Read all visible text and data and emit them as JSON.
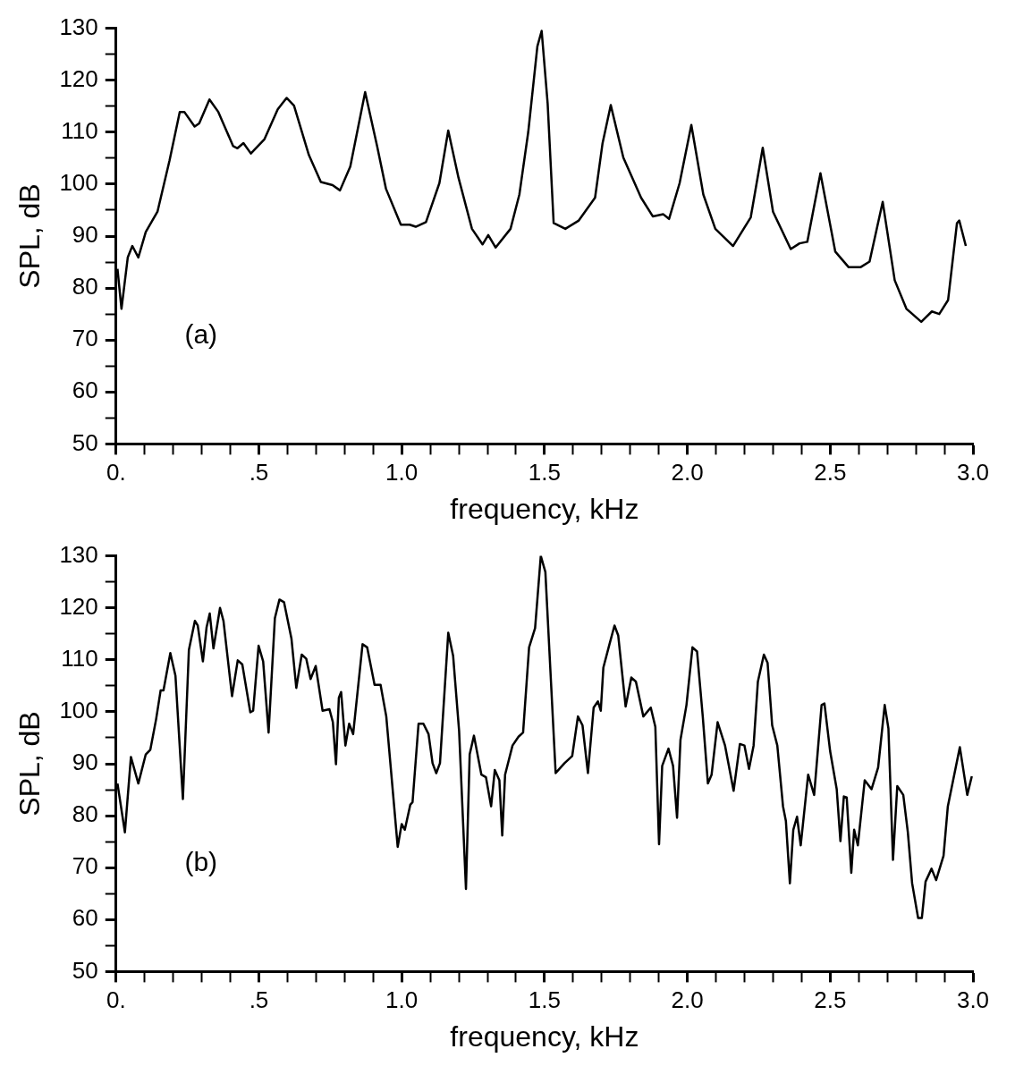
{
  "chart_data": [
    {
      "type": "line",
      "xlabel": "frequency, kHz",
      "ylabel": "SPL, dB",
      "annotations": [
        "(a)"
      ],
      "xlim": [
        0,
        3
      ],
      "ylim": [
        50,
        130
      ],
      "xticks": [
        {
          "value": 0,
          "label": "0."
        },
        {
          "value": 0.1,
          "label": null
        },
        {
          "value": 0.2,
          "label": null
        },
        {
          "value": 0.3,
          "label": null
        },
        {
          "value": 0.4,
          "label": null
        },
        {
          "value": 0.5,
          "label": ".5"
        },
        {
          "value": 0.6,
          "label": null
        },
        {
          "value": 0.7,
          "label": null
        },
        {
          "value": 0.8,
          "label": null
        },
        {
          "value": 0.9,
          "label": null
        },
        {
          "value": 1,
          "label": "1.0"
        },
        {
          "value": 1.1,
          "label": null
        },
        {
          "value": 1.2,
          "label": null
        },
        {
          "value": 1.3,
          "label": null
        },
        {
          "value": 1.4,
          "label": null
        },
        {
          "value": 1.5,
          "label": "1.5"
        },
        {
          "value": 1.6,
          "label": null
        },
        {
          "value": 1.7,
          "label": null
        },
        {
          "value": 1.8,
          "label": null
        },
        {
          "value": 1.9,
          "label": null
        },
        {
          "value": 2,
          "label": "2.0"
        },
        {
          "value": 2.1,
          "label": null
        },
        {
          "value": 2.2,
          "label": null
        },
        {
          "value": 2.3,
          "label": null
        },
        {
          "value": 2.4,
          "label": null
        },
        {
          "value": 2.5,
          "label": "2.5"
        },
        {
          "value": 2.6,
          "label": null
        },
        {
          "value": 2.7,
          "label": null
        },
        {
          "value": 2.8,
          "label": null
        },
        {
          "value": 2.9,
          "label": null
        },
        {
          "value": 3,
          "label": "3.0"
        }
      ],
      "yticks": [
        50,
        {
          "value": 55,
          "label": null
        },
        60,
        {
          "value": 65,
          "label": null
        },
        70,
        {
          "value": 75,
          "label": null
        },
        80,
        {
          "value": 85,
          "label": null
        },
        90,
        {
          "value": 95,
          "label": null
        },
        100,
        {
          "value": 105,
          "label": null
        },
        110,
        {
          "value": 115,
          "label": null
        },
        120,
        {
          "value": 125,
          "label": null
        },
        130
      ],
      "grid": false,
      "legend": false,
      "marker": "none",
      "line_style": "solid",
      "series": [
        {
          "color": "#000000",
          "x": [
            0.005,
            0.019,
            0.041,
            0.057,
            0.078,
            0.104,
            0.145,
            0.187,
            0.223,
            0.239,
            0.275,
            0.291,
            0.327,
            0.358,
            0.41,
            0.425,
            0.446,
            0.472,
            0.519,
            0.566,
            0.597,
            0.623,
            0.675,
            0.717,
            0.758,
            0.784,
            0.82,
            0.872,
            0.914,
            0.945,
            0.997,
            1.028,
            1.049,
            1.085,
            1.132,
            1.163,
            1.199,
            1.246,
            1.283,
            1.303,
            1.329,
            1.381,
            1.412,
            1.443,
            1.475,
            1.49,
            1.511,
            1.532,
            1.573,
            1.62,
            1.677,
            1.703,
            1.732,
            1.776,
            1.838,
            1.879,
            1.916,
            1.936,
            1.973,
            2.014,
            2.056,
            2.098,
            2.16,
            2.222,
            2.264,
            2.3,
            2.362,
            2.393,
            2.42,
            2.466,
            2.518,
            2.565,
            2.606,
            2.638,
            2.684,
            2.726,
            2.767,
            2.819,
            2.856,
            2.882,
            2.913,
            2.944,
            2.952,
            2.975
          ],
          "values": [
            83.7,
            76,
            85.9,
            88.1,
            85.9,
            90.8,
            94.7,
            104.5,
            113.9,
            113.9,
            111.1,
            111.7,
            116.3,
            113.9,
            107.3,
            106.9,
            107.9,
            105.9,
            108.6,
            114.4,
            116.6,
            115.1,
            105.6,
            100.4,
            99.8,
            98.8,
            103.4,
            117.7,
            107.3,
            99.1,
            92.2,
            92.2,
            91.8,
            92.7,
            100.2,
            110.3,
            101.2,
            91.4,
            88.4,
            90.2,
            87.8,
            91.4,
            98,
            110,
            126.5,
            129.5,
            115.5,
            92.5,
            91.4,
            93,
            97.4,
            107.8,
            115.2,
            105.1,
            97.4,
            93.8,
            94.2,
            93.3,
            100.2,
            111.4,
            98,
            91.4,
            88.1,
            93.6,
            107,
            94.7,
            87.5,
            88.6,
            88.9,
            102.1,
            87,
            84,
            84,
            85.1,
            96.6,
            81.5,
            76,
            73.5,
            75.5,
            75,
            77.7,
            92.5,
            93,
            88.1
          ]
        }
      ]
    },
    {
      "type": "line",
      "xlabel": "frequency, kHz",
      "ylabel": "SPL, dB",
      "annotations": [
        "(b)"
      ],
      "xlim": [
        0,
        3
      ],
      "ylim": [
        50,
        130
      ],
      "xticks": [
        {
          "value": 0,
          "label": "0."
        },
        {
          "value": 0.1,
          "label": null
        },
        {
          "value": 0.2,
          "label": null
        },
        {
          "value": 0.3,
          "label": null
        },
        {
          "value": 0.4,
          "label": null
        },
        {
          "value": 0.5,
          "label": ".5"
        },
        {
          "value": 0.6,
          "label": null
        },
        {
          "value": 0.7,
          "label": null
        },
        {
          "value": 0.8,
          "label": null
        },
        {
          "value": 0.9,
          "label": null
        },
        {
          "value": 1,
          "label": "1.0"
        },
        {
          "value": 1.1,
          "label": null
        },
        {
          "value": 1.2,
          "label": null
        },
        {
          "value": 1.3,
          "label": null
        },
        {
          "value": 1.4,
          "label": null
        },
        {
          "value": 1.5,
          "label": "1.5"
        },
        {
          "value": 1.6,
          "label": null
        },
        {
          "value": 1.7,
          "label": null
        },
        {
          "value": 1.8,
          "label": null
        },
        {
          "value": 1.9,
          "label": null
        },
        {
          "value": 2,
          "label": "2.0"
        },
        {
          "value": 2.1,
          "label": null
        },
        {
          "value": 2.2,
          "label": null
        },
        {
          "value": 2.3,
          "label": null
        },
        {
          "value": 2.4,
          "label": null
        },
        {
          "value": 2.5,
          "label": "2.5"
        },
        {
          "value": 2.6,
          "label": null
        },
        {
          "value": 2.7,
          "label": null
        },
        {
          "value": 2.8,
          "label": null
        },
        {
          "value": 2.9,
          "label": null
        },
        {
          "value": 3,
          "label": "3.0"
        }
      ],
      "yticks": [
        50,
        {
          "value": 55,
          "label": null
        },
        60,
        {
          "value": 65,
          "label": null
        },
        70,
        {
          "value": 75,
          "label": null
        },
        80,
        {
          "value": 85,
          "label": null
        },
        90,
        {
          "value": 95,
          "label": null
        },
        100,
        {
          "value": 105,
          "label": null
        },
        110,
        {
          "value": 115,
          "label": null
        },
        120,
        {
          "value": 125,
          "label": null
        },
        130
      ],
      "grid": false,
      "legend": false,
      "marker": "none",
      "line_style": "solid",
      "series": [
        {
          "color": "#000000",
          "x": [
            0.005,
            0.031,
            0.052,
            0.078,
            0.104,
            0.12,
            0.14,
            0.156,
            0.166,
            0.19,
            0.208,
            0.234,
            0.255,
            0.276,
            0.286,
            0.304,
            0.317,
            0.328,
            0.341,
            0.364,
            0.376,
            0.406,
            0.426,
            0.442,
            0.47,
            0.48,
            0.499,
            0.515,
            0.534,
            0.556,
            0.572,
            0.588,
            0.614,
            0.631,
            0.65,
            0.666,
            0.681,
            0.699,
            0.723,
            0.747,
            0.759,
            0.77,
            0.78,
            0.788,
            0.803,
            0.816,
            0.83,
            0.863,
            0.879,
            0.905,
            0.926,
            0.946,
            0.986,
            1.0,
            1.011,
            1.03,
            1.038,
            1.059,
            1.076,
            1.094,
            1.108,
            1.121,
            1.134,
            1.163,
            1.18,
            1.201,
            1.225,
            1.238,
            1.253,
            1.279,
            1.295,
            1.313,
            1.326,
            1.342,
            1.352,
            1.362,
            1.388,
            1.409,
            1.425,
            1.446,
            1.467,
            1.487,
            1.503,
            1.539,
            1.57,
            1.597,
            1.617,
            1.633,
            1.652,
            1.672,
            1.687,
            1.697,
            1.706,
            1.726,
            1.745,
            1.758,
            1.784,
            1.804,
            1.82,
            1.846,
            1.872,
            1.888,
            1.901,
            1.912,
            1.934,
            1.95,
            1.964,
            1.976,
            1.997,
            2.018,
            2.034,
            2.054,
            2.072,
            2.085,
            2.106,
            2.132,
            2.162,
            2.184,
            2.2,
            2.216,
            2.232,
            2.247,
            2.268,
            2.281,
            2.297,
            2.315,
            2.335,
            2.345,
            2.359,
            2.371,
            2.384,
            2.397,
            2.423,
            2.444,
            2.47,
            2.48,
            2.5,
            2.523,
            2.536,
            2.548,
            2.558,
            2.574,
            2.584,
            2.597,
            2.621,
            2.645,
            2.668,
            2.691,
            2.704,
            2.72,
            2.735,
            2.756,
            2.772,
            2.787,
            2.808,
            2.821,
            2.834,
            2.855,
            2.871,
            2.897,
            2.912,
            2.954,
            2.98,
            2.996
          ],
          "values": [
            86.2,
            76.8,
            91.3,
            86.2,
            91.8,
            92.7,
            98.5,
            104.1,
            104.1,
            111.3,
            106.9,
            83.2,
            111.9,
            117.5,
            116.6,
            109.7,
            116.3,
            118.9,
            112.2,
            120,
            117.5,
            103,
            109.9,
            109.1,
            99.9,
            100.2,
            112.7,
            109.7,
            96,
            118,
            121.6,
            121.1,
            114.1,
            104.6,
            111,
            110.2,
            106.3,
            108.8,
            100.2,
            100.5,
            98,
            89.9,
            102.7,
            103.8,
            93.5,
            97.7,
            95.7,
            113,
            112.4,
            105.2,
            105.2,
            99.1,
            74,
            78.4,
            77.3,
            82.1,
            82.6,
            97.7,
            97.7,
            95.7,
            90.1,
            88.2,
            90.1,
            115.2,
            110.8,
            96.3,
            65.9,
            91.8,
            95.4,
            87.9,
            87.4,
            81.8,
            88.8,
            86.8,
            76.2,
            87.9,
            93.5,
            95.2,
            96,
            112.4,
            116.1,
            130,
            126.9,
            88.2,
            90.1,
            91.5,
            99.1,
            97.4,
            88.2,
            100.8,
            102,
            100.2,
            108.5,
            112.7,
            116.6,
            114.7,
            101,
            106.6,
            105.8,
            99.1,
            100.8,
            97.1,
            74.5,
            89.6,
            92.9,
            89.6,
            79.6,
            94.6,
            101.3,
            112.4,
            111.6,
            99.1,
            86.2,
            87.9,
            98,
            93.5,
            84.8,
            93.8,
            93.5,
            89,
            93.5,
            105.8,
            111,
            109.4,
            97.4,
            93.5,
            81.8,
            79,
            67,
            77.3,
            79.8,
            74.3,
            87.9,
            84,
            101.3,
            101.6,
            92.4,
            85.1,
            75.1,
            83.7,
            83.5,
            69,
            77.3,
            74.3,
            86.8,
            85.1,
            89.3,
            101.3,
            96.8,
            71.5,
            85.7,
            84,
            76.8,
            67,
            60.3,
            60.3,
            67.3,
            69.8,
            67.6,
            72.3,
            81.8,
            93.2,
            84,
            87.6
          ]
        }
      ]
    }
  ]
}
